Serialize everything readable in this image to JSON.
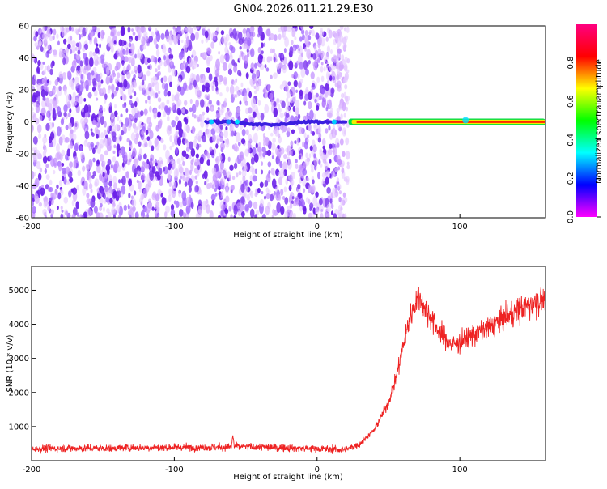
{
  "chart_data": [
    {
      "type": "heatmap",
      "title": "GN04.2026.011.21.29.E30",
      "xlabel": "Height of straight line (km)",
      "ylabel": "Frequency (Hz)",
      "xlim": [
        -200,
        160
      ],
      "ylim": [
        -60,
        60
      ],
      "xticks": [
        -200,
        -100,
        0,
        100
      ],
      "yticks": [
        60,
        40,
        20,
        0,
        -20,
        -40,
        -60
      ],
      "noise_region_x": [
        -200,
        22
      ],
      "ridge_frequency": 0,
      "ridge_start_x": 22,
      "ridge_end_x": 160,
      "colorbar": {
        "label": "Normalized spectral amplitude",
        "ticks": [
          0.0,
          0.2,
          0.4,
          0.6,
          0.8
        ],
        "tick_labels": [
          "0.0",
          "0.2",
          "0.4",
          "0.6",
          "0.8"
        ],
        "colors": [
          "#ff00ff",
          "#0000ff",
          "#00ffff",
          "#00ff00",
          "#ffff00",
          "#ff0000",
          "#ff0080"
        ]
      }
    },
    {
      "type": "line",
      "xlabel": "Height of straight line (km)",
      "ylabel": "SNR (10 * v/v)",
      "xlim": [
        -200,
        160
      ],
      "ylim": [
        0,
        5700
      ],
      "xticks": [
        -200,
        -100,
        0,
        100
      ],
      "yticks": [
        1000,
        2000,
        3000,
        4000,
        5000
      ],
      "color": "#ee2222",
      "series": [
        {
          "name": "SNR",
          "x": [
            -200,
            -150,
            -100,
            -60,
            -59,
            -58,
            -40,
            0,
            20,
            30,
            40,
            50,
            55,
            60,
            65,
            70,
            72,
            75,
            80,
            85,
            90,
            95,
            100,
            110,
            120,
            130,
            140,
            150,
            160
          ],
          "values": [
            350,
            370,
            390,
            400,
            750,
            420,
            400,
            350,
            320,
            500,
            900,
            1700,
            2400,
            3300,
            4200,
            4750,
            4800,
            4500,
            4200,
            3800,
            3550,
            3400,
            3500,
            3700,
            3900,
            4150,
            4400,
            4600,
            4750
          ]
        }
      ]
    }
  ]
}
